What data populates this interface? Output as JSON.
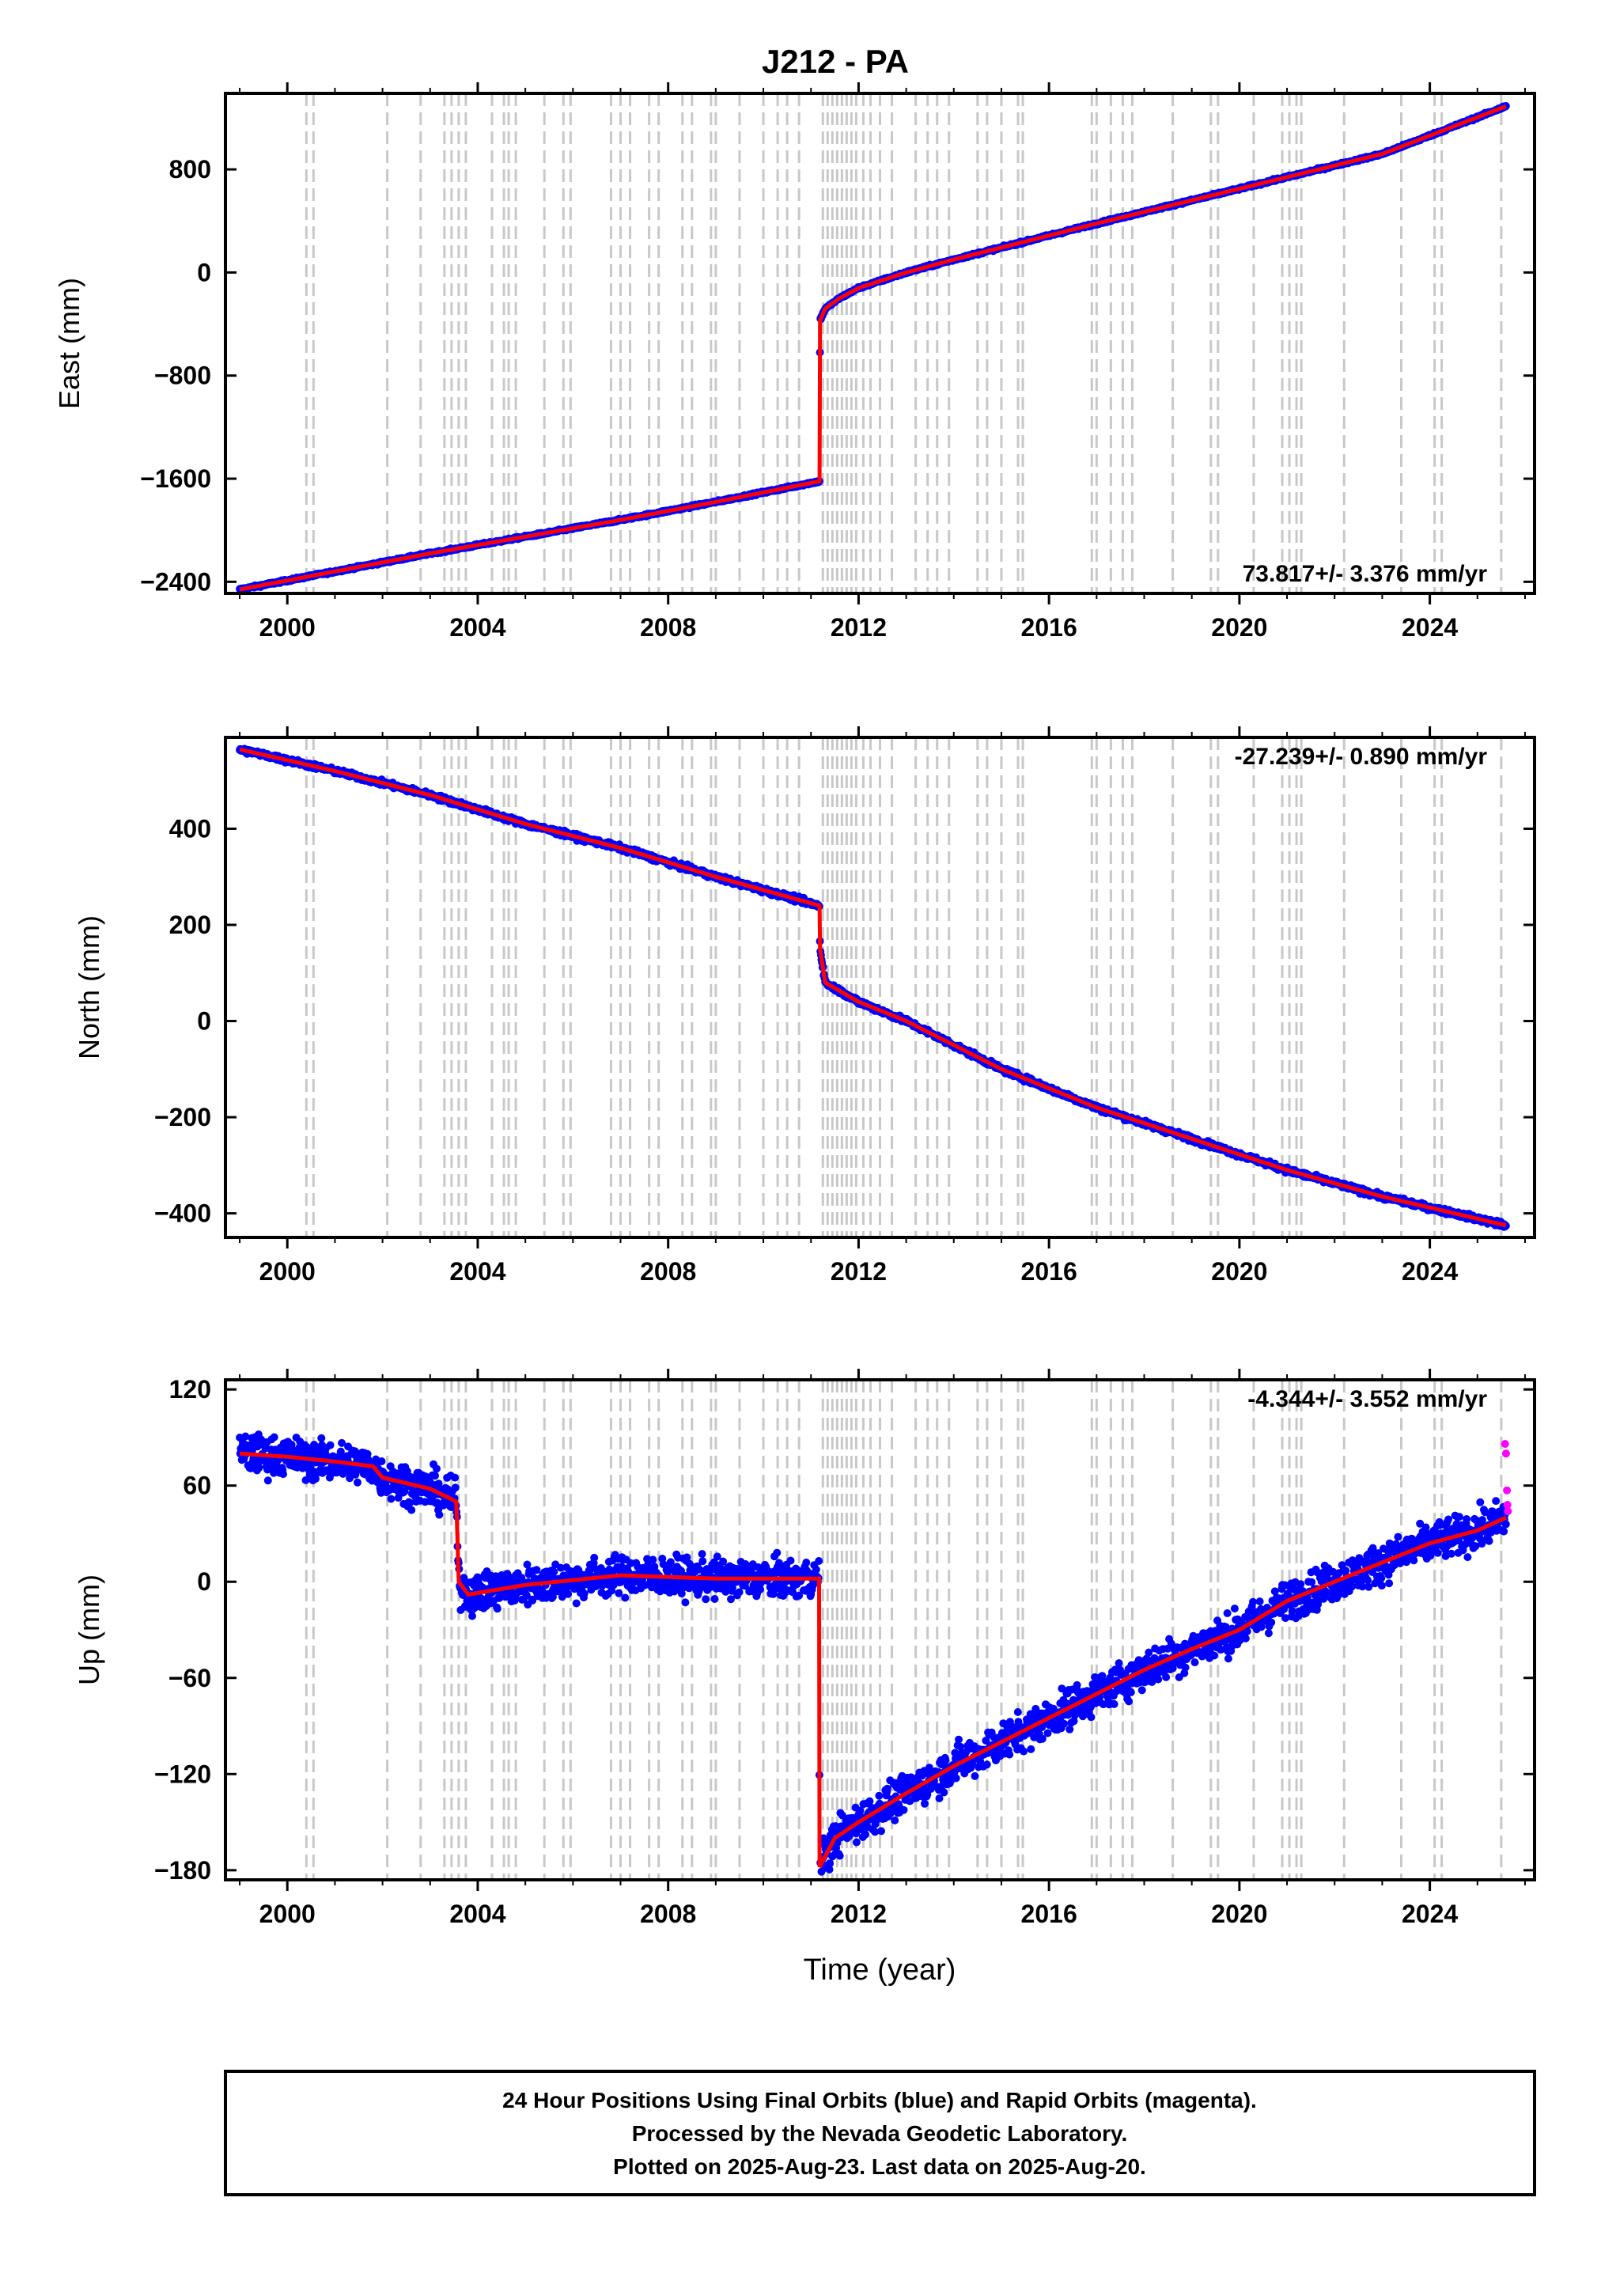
{
  "title": "J212 - PA",
  "chart_data": [
    {
      "type": "scatter",
      "panel": "east",
      "ylabel": "East (mm)",
      "xlabel": "",
      "xlim": [
        1998.7,
        2026.2
      ],
      "ylim": [
        -2490,
        1390
      ],
      "yticks": [
        -2400,
        -1600,
        -800,
        0,
        800
      ],
      "xticks": [
        2000,
        2004,
        2008,
        2012,
        2016,
        2020,
        2024
      ],
      "rate_label": "73.817+/- 3.376 mm/yr",
      "rate_position": "bottom-right",
      "knots": [
        [
          1999.0,
          -2460
        ],
        [
          2001.0,
          -2320
        ],
        [
          2003.0,
          -2180
        ],
        [
          2005.0,
          -2050
        ],
        [
          2007.0,
          -1920
        ],
        [
          2009.0,
          -1780
        ],
        [
          2011.18,
          -1620
        ],
        [
          2011.19,
          -370
        ],
        [
          2011.3,
          -280
        ],
        [
          2011.6,
          -200
        ],
        [
          2012.0,
          -120
        ],
        [
          2013.0,
          0
        ],
        [
          2014.0,
          100
        ],
        [
          2015.5,
          240
        ],
        [
          2017.0,
          380
        ],
        [
          2019.0,
          560
        ],
        [
          2021.0,
          740
        ],
        [
          2023.0,
          920
        ],
        [
          2025.6,
          1290
        ]
      ],
      "noise": 8
    },
    {
      "type": "scatter",
      "panel": "north",
      "ylabel": "North (mm)",
      "xlabel": "",
      "xlim": [
        1998.7,
        2026.2
      ],
      "ylim": [
        -450,
        590
      ],
      "yticks": [
        -400,
        -200,
        0,
        200,
        400
      ],
      "xticks": [
        2000,
        2004,
        2008,
        2012,
        2016,
        2020,
        2024
      ],
      "rate_label": "-27.239+/- 0.890 mm/yr",
      "rate_position": "top-right",
      "knots": [
        [
          1999.0,
          565
        ],
        [
          2001.0,
          520
        ],
        [
          2003.0,
          470
        ],
        [
          2005.0,
          410
        ],
        [
          2007.0,
          360
        ],
        [
          2009.0,
          300
        ],
        [
          2011.18,
          240
        ],
        [
          2011.19,
          150
        ],
        [
          2011.3,
          80
        ],
        [
          2012.0,
          40
        ],
        [
          2013.0,
          0
        ],
        [
          2015.0,
          -100
        ],
        [
          2017.0,
          -180
        ],
        [
          2019.0,
          -245
        ],
        [
          2021.0,
          -310
        ],
        [
          2023.0,
          -365
        ],
        [
          2025.6,
          -425
        ]
      ],
      "noise": 5
    },
    {
      "type": "scatter",
      "panel": "up",
      "ylabel": "Up (mm)",
      "xlabel": "Time (year)",
      "xlim": [
        1998.7,
        2026.2
      ],
      "ylim": [
        -186,
        126
      ],
      "yticks": [
        -180,
        -120,
        -60,
        0,
        60,
        120
      ],
      "xticks": [
        2000,
        2004,
        2008,
        2012,
        2016,
        2020,
        2024
      ],
      "rate_label": "-4.344+/- 3.552 mm/yr",
      "rate_position": "top-right",
      "knots": [
        [
          1999.0,
          80
        ],
        [
          2000.0,
          78
        ],
        [
          2001.0,
          75
        ],
        [
          2001.8,
          72
        ],
        [
          2002.0,
          65
        ],
        [
          2003.0,
          58
        ],
        [
          2003.55,
          50
        ],
        [
          2003.6,
          0
        ],
        [
          2003.8,
          -8
        ],
        [
          2005.0,
          -2
        ],
        [
          2007.0,
          4
        ],
        [
          2009.0,
          2
        ],
        [
          2011.17,
          2
        ],
        [
          2011.18,
          -178
        ],
        [
          2011.5,
          -160
        ],
        [
          2012.0,
          -150
        ],
        [
          2013.0,
          -132
        ],
        [
          2014.0,
          -115
        ],
        [
          2015.0,
          -100
        ],
        [
          2016.0,
          -85
        ],
        [
          2017.0,
          -70
        ],
        [
          2018.0,
          -55
        ],
        [
          2019.0,
          -42
        ],
        [
          2020.0,
          -30
        ],
        [
          2021.0,
          -12
        ],
        [
          2022.0,
          0
        ],
        [
          2023.0,
          12
        ],
        [
          2024.0,
          24
        ],
        [
          2025.0,
          32
        ],
        [
          2025.6,
          40
        ]
      ],
      "noise": 11,
      "rapid_points": [
        [
          2025.58,
          86
        ],
        [
          2025.6,
          80
        ],
        [
          2025.62,
          57
        ],
        [
          2025.63,
          48
        ],
        [
          2025.64,
          44
        ]
      ]
    }
  ],
  "event_lines": [
    2000.4,
    2000.55,
    2002.1,
    2002.8,
    2003.3,
    2003.45,
    2003.6,
    2003.75,
    2004.3,
    2004.55,
    2004.65,
    2004.8,
    2005.4,
    2005.8,
    2005.95,
    2006.8,
    2007.0,
    2007.2,
    2007.6,
    2007.8,
    2008.3,
    2008.5,
    2008.9,
    2009.0,
    2009.5,
    2010.0,
    2010.3,
    2010.5,
    2010.75,
    2011.25,
    2011.35,
    2011.45,
    2011.55,
    2011.65,
    2011.75,
    2011.85,
    2011.95,
    2012.1,
    2012.25,
    2012.45,
    2012.7,
    2013.2,
    2013.45,
    2013.65,
    2013.9,
    2014.5,
    2014.7,
    2015.0,
    2015.35,
    2015.45,
    2016.9,
    2017.0,
    2017.3,
    2017.55,
    2017.75,
    2018.6,
    2019.4,
    2019.55,
    2020.3,
    2020.9,
    2021.05,
    2021.2,
    2021.3,
    2022.2,
    2023.4,
    2024.1,
    2024.25,
    2025.5
  ],
  "colors": {
    "final_orbits": "#0000ff",
    "rapid_orbits": "#ff00ff",
    "model": "#ff0000",
    "event_lines": "#c8c8c8"
  },
  "footer": {
    "line1": "24 Hour Positions Using Final Orbits (blue) and Rapid Orbits (magenta).",
    "line2": "Processed by the Nevada Geodetic Laboratory.",
    "line3": "Plotted on 2025-Aug-23. Last data on 2025-Aug-20."
  }
}
